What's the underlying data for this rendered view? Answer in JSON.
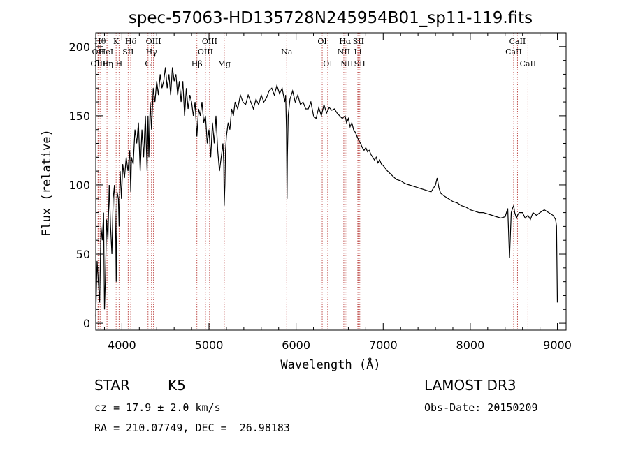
{
  "chart_data": {
    "type": "line",
    "title": "spec-57063-HD135728N245954B01_sp11-119.fits",
    "xlabel": "Wavelength (Å)",
    "ylabel": "Flux (relative)",
    "xlim": [
      3700,
      9100
    ],
    "ylim": [
      -5,
      210
    ],
    "x_ticks": [
      4000,
      5000,
      6000,
      7000,
      8000,
      9000
    ],
    "y_ticks": [
      0,
      50,
      100,
      150,
      200
    ],
    "grid": false,
    "series": [
      {
        "name": "spectrum",
        "x": [
          3700,
          3715,
          3730,
          3745,
          3760,
          3775,
          3790,
          3800,
          3810,
          3825,
          3840,
          3855,
          3870,
          3885,
          3900,
          3915,
          3930,
          3935,
          3945,
          3960,
          3968,
          3980,
          3995,
          4010,
          4030,
          4050,
          4070,
          4090,
          4102,
          4110,
          4130,
          4150,
          4170,
          4190,
          4210,
          4230,
          4250,
          4270,
          4290,
          4300,
          4310,
          4325,
          4340,
          4360,
          4380,
          4400,
          4420,
          4440,
          4460,
          4480,
          4500,
          4520,
          4540,
          4560,
          4580,
          4600,
          4620,
          4640,
          4660,
          4680,
          4700,
          4720,
          4740,
          4760,
          4780,
          4800,
          4820,
          4840,
          4861,
          4880,
          4900,
          4920,
          4940,
          4960,
          4980,
          5000,
          5020,
          5040,
          5060,
          5080,
          5100,
          5120,
          5140,
          5160,
          5170,
          5175,
          5183,
          5190,
          5200,
          5220,
          5240,
          5260,
          5280,
          5300,
          5330,
          5360,
          5390,
          5420,
          5450,
          5480,
          5510,
          5540,
          5570,
          5600,
          5630,
          5660,
          5690,
          5720,
          5750,
          5780,
          5810,
          5840,
          5870,
          5880,
          5890,
          5896,
          5900,
          5910,
          5930,
          5960,
          5990,
          6020,
          6050,
          6080,
          6110,
          6140,
          6170,
          6200,
          6230,
          6260,
          6290,
          6320,
          6350,
          6380,
          6410,
          6440,
          6470,
          6500,
          6530,
          6563,
          6580,
          6600,
          6620,
          6640,
          6660,
          6680,
          6700,
          6720,
          6740,
          6760,
          6780,
          6800,
          6820,
          6840,
          6860,
          6880,
          6900,
          6920,
          6940,
          6960,
          6980,
          7000,
          7050,
          7100,
          7150,
          7200,
          7250,
          7300,
          7350,
          7400,
          7450,
          7500,
          7550,
          7600,
          7620,
          7640,
          7660,
          7700,
          7750,
          7800,
          7850,
          7900,
          7950,
          8000,
          8050,
          8100,
          8150,
          8200,
          8250,
          8300,
          8350,
          8400,
          8430,
          8450,
          8470,
          8490,
          8498,
          8510,
          8530,
          8542,
          8560,
          8600,
          8630,
          8662,
          8690,
          8720,
          8760,
          8800,
          8850,
          8900,
          8950,
          8980,
          8990,
          9000
        ],
        "y": [
          5,
          45,
          30,
          15,
          70,
          60,
          80,
          10,
          30,
          75,
          60,
          100,
          70,
          50,
          90,
          100,
          60,
          30,
          95,
          90,
          70,
          110,
          90,
          115,
          105,
          120,
          110,
          125,
          95,
          120,
          115,
          140,
          130,
          145,
          110,
          140,
          120,
          150,
          110,
          150,
          120,
          160,
          140,
          170,
          160,
          175,
          165,
          180,
          170,
          175,
          185,
          170,
          180,
          165,
          185,
          175,
          180,
          165,
          175,
          160,
          175,
          150,
          170,
          155,
          165,
          160,
          150,
          160,
          135,
          155,
          150,
          160,
          145,
          150,
          130,
          140,
          120,
          145,
          130,
          150,
          125,
          110,
          120,
          130,
          115,
          85,
          100,
          125,
          135,
          145,
          140,
          155,
          150,
          160,
          155,
          165,
          160,
          158,
          165,
          160,
          155,
          162,
          158,
          165,
          160,
          163,
          168,
          170,
          165,
          172,
          166,
          170,
          160,
          165,
          140,
          90,
          120,
          150,
          162,
          168,
          160,
          165,
          158,
          160,
          155,
          155,
          160,
          150,
          148,
          156,
          150,
          158,
          152,
          156,
          154,
          155,
          152,
          150,
          148,
          150,
          145,
          148,
          142,
          145,
          140,
          138,
          135,
          132,
          130,
          127,
          125,
          127,
          124,
          125,
          122,
          120,
          118,
          120,
          116,
          118,
          115,
          114,
          110,
          107,
          104,
          103,
          101,
          100,
          99,
          98,
          97,
          96,
          95,
          100,
          105,
          98,
          94,
          92,
          90,
          88,
          87,
          85,
          84,
          82,
          81,
          80,
          80,
          79,
          78,
          77,
          76,
          77,
          83,
          47,
          80,
          84,
          85,
          80,
          76,
          78,
          80,
          80,
          76,
          78,
          75,
          80,
          78,
          80,
          82,
          80,
          78,
          75,
          70,
          15
        ]
      }
    ],
    "line_labels": [
      {
        "wavelength": 3750,
        "label": "Hθ",
        "row": 1
      },
      {
        "wavelength": 3727,
        "label": "OII",
        "row": 2
      },
      {
        "wavelength": 3727,
        "label": "OIII",
        "row": 3
      },
      {
        "wavelength": 3820,
        "label": "HeI",
        "row": 2
      },
      {
        "wavelength": 3835,
        "label": "Hη",
        "row": 3
      },
      {
        "wavelength": 3934,
        "label": "K",
        "row": 1
      },
      {
        "wavelength": 3968,
        "label": "H",
        "row": 3
      },
      {
        "wavelength": 4072,
        "label": "SII",
        "row": 2
      },
      {
        "wavelength": 4102,
        "label": "Hδ",
        "row": 1
      },
      {
        "wavelength": 4300,
        "label": "G",
        "row": 3
      },
      {
        "wavelength": 4340,
        "label": "Hγ",
        "row": 2
      },
      {
        "wavelength": 4363,
        "label": "OIII",
        "row": 1
      },
      {
        "wavelength": 4861,
        "label": "Hβ",
        "row": 3
      },
      {
        "wavelength": 4959,
        "label": "OIII",
        "row": 2
      },
      {
        "wavelength": 5007,
        "label": "OIII",
        "row": 1
      },
      {
        "wavelength": 5175,
        "label": "Mg",
        "row": 3
      },
      {
        "wavelength": 5893,
        "label": "Na",
        "row": 2
      },
      {
        "wavelength": 6300,
        "label": "OI",
        "row": 1
      },
      {
        "wavelength": 6363,
        "label": "OI",
        "row": 3
      },
      {
        "wavelength": 6548,
        "label": "NII",
        "row": 2
      },
      {
        "wavelength": 6563,
        "label": "Hα",
        "row": 1
      },
      {
        "wavelength": 6583,
        "label": "NII",
        "row": 3
      },
      {
        "wavelength": 6708,
        "label": "Li",
        "row": 2
      },
      {
        "wavelength": 6716,
        "label": "SII",
        "row": 1
      },
      {
        "wavelength": 6731,
        "label": "SII",
        "row": 3
      },
      {
        "wavelength": 8498,
        "label": "CaII",
        "row": 2
      },
      {
        "wavelength": 8542,
        "label": "CaII",
        "row": 1
      },
      {
        "wavelength": 8662,
        "label": "CaII",
        "row": 3
      }
    ]
  },
  "info": {
    "object_class": "STAR",
    "subclass": "K5",
    "survey": "LAMOST DR3",
    "redshift_line": "cz = 17.9 ± 2.0 km/s",
    "obs_date": "Obs-Date: 20150209",
    "coords": "RA = 210.07749, DEC =  26.98183"
  }
}
